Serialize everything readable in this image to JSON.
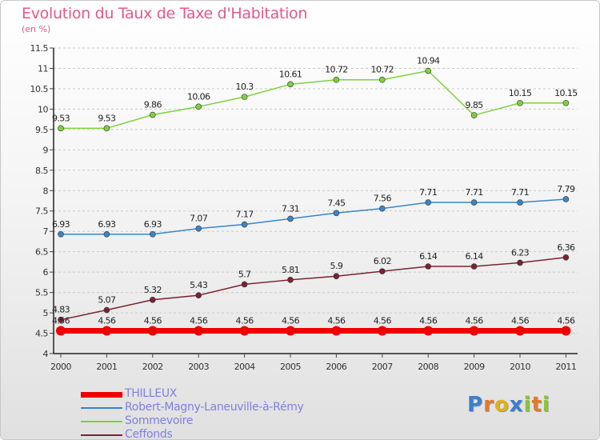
{
  "title": "Evolution du Taux de Taxe d'Habitation",
  "unit_label": "(en %)",
  "colors": {
    "title": "#e05a8a",
    "axis_text": "#333333",
    "legend_text": "#8080e0",
    "grid": "#cccccc"
  },
  "chart_data": {
    "type": "line",
    "title": "Evolution du Taux de Taxe d'Habitation",
    "ylabel": "(en %)",
    "xlabel": "",
    "x": [
      "2000",
      "2001",
      "2002",
      "2003",
      "2004",
      "2005",
      "2006",
      "2007",
      "2008",
      "2009",
      "2010",
      "2011"
    ],
    "ylim": [
      4,
      11.5
    ],
    "yticks": [
      "4",
      "4.5",
      "5",
      "5.5",
      "6",
      "6.5",
      "7",
      "7.5",
      "8",
      "8.5",
      "9",
      "9.5",
      "10",
      "10.5",
      "11",
      "11.5"
    ],
    "grid": "horizontal dashed",
    "legend_position": "bottom-left",
    "series": [
      {
        "name": "THILLEUX",
        "color": "#ee0000",
        "values": [
          4.56,
          4.56,
          4.56,
          4.56,
          4.56,
          4.56,
          4.56,
          4.56,
          4.56,
          4.56,
          4.56,
          4.56
        ],
        "labels": [
          "4.56",
          "4.56",
          "4.56",
          "4.56",
          "4.56",
          "4.56",
          "4.56",
          "4.56",
          "4.56",
          "4.56",
          "4.56",
          "4.56"
        ]
      },
      {
        "name": "Robert-Magny-Laneuville-à-Rémy",
        "color": "#3a86c8",
        "values": [
          6.93,
          6.93,
          6.93,
          7.07,
          7.17,
          7.31,
          7.45,
          7.56,
          7.71,
          7.71,
          7.71,
          7.79
        ],
        "labels": [
          "6.93",
          "6.93",
          "6.93",
          "7.07",
          "7.17",
          "7.31",
          "7.45",
          "7.56",
          "7.71",
          "7.71",
          "7.71",
          "7.79"
        ]
      },
      {
        "name": "Sommevoire",
        "color": "#7ed13b",
        "values": [
          9.53,
          9.53,
          9.86,
          10.06,
          10.3,
          10.61,
          10.72,
          10.72,
          10.94,
          9.85,
          10.15,
          10.15
        ],
        "labels": [
          "9.53",
          "9.53",
          "9.86",
          "10.06",
          "10.3",
          "10.61",
          "10.72",
          "10.72",
          "10.94",
          "9.85",
          "10.15",
          "10.15"
        ]
      },
      {
        "name": "Ceffonds",
        "color": "#7a2330",
        "values": [
          4.83,
          5.07,
          5.32,
          5.43,
          5.7,
          5.81,
          5.9,
          6.02,
          6.14,
          6.14,
          6.23,
          6.36
        ],
        "labels": [
          "4.83",
          "5.07",
          "5.32",
          "5.43",
          "5.7",
          "5.81",
          "5.9",
          "6.02",
          "6.14",
          "6.14",
          "6.23",
          "6.36"
        ]
      }
    ]
  },
  "logo": {
    "letters": [
      "P",
      "r",
      "o",
      "x",
      "i",
      "t",
      "i"
    ],
    "colors": [
      "#3a7fd0",
      "#e07a2a",
      "#e0b020",
      "#3a7fd0",
      "#8ac43a",
      "#e07a2a",
      "#8ac43a"
    ]
  }
}
